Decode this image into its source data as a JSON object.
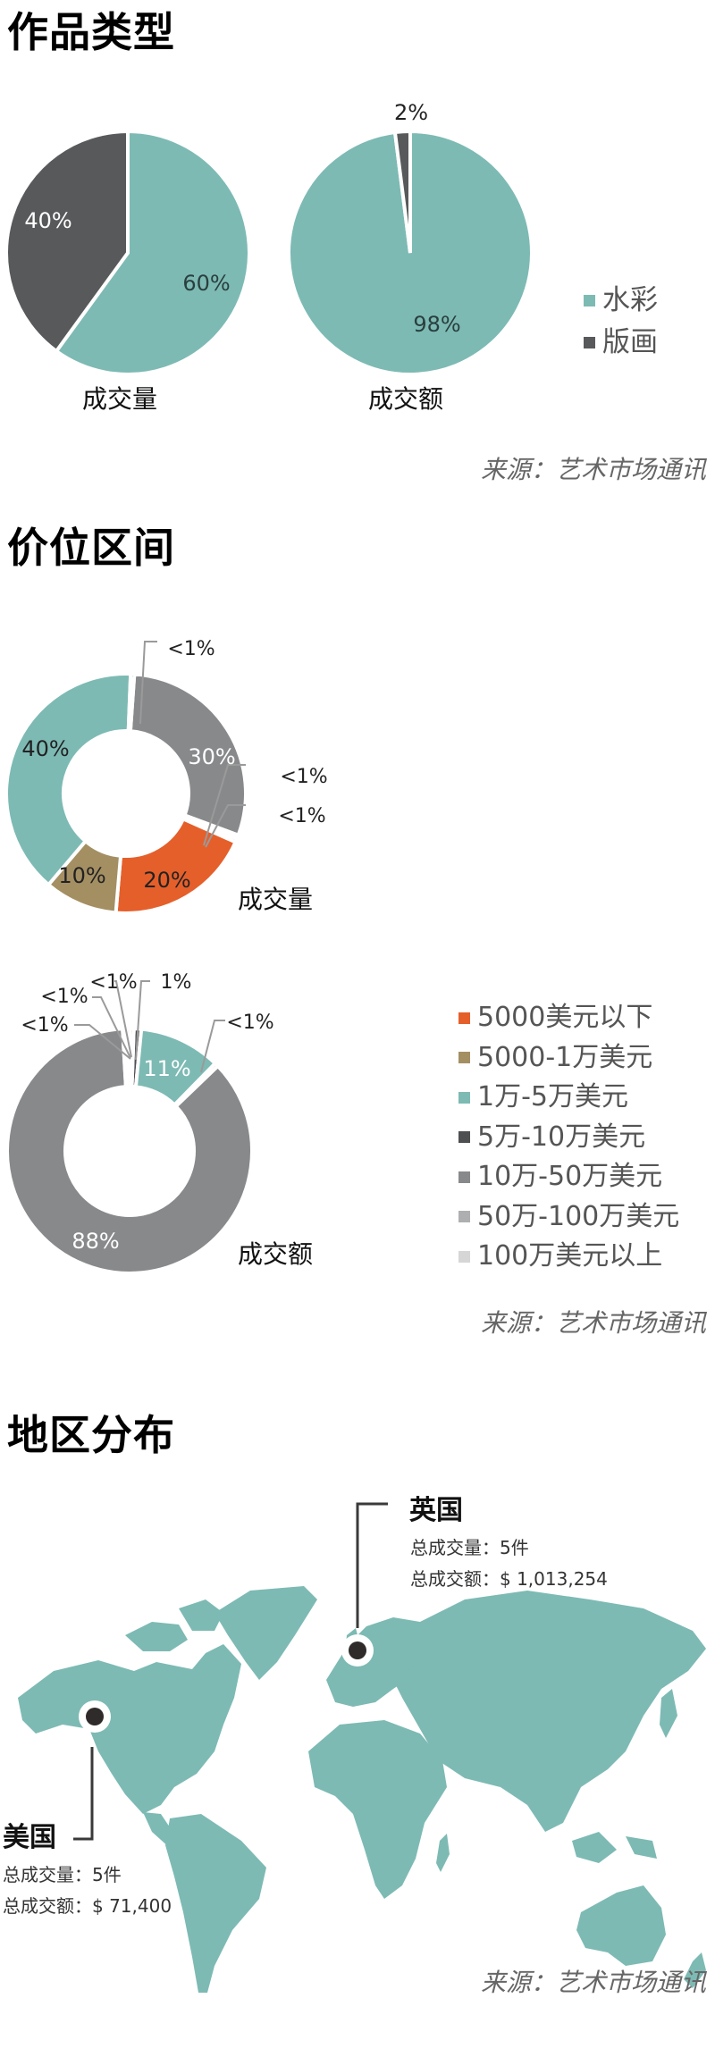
{
  "sections": {
    "type": {
      "heading": "作品类型",
      "pie_volume_label": "成交量",
      "pie_value_label": "成交额",
      "legend": [
        {
          "label": "水彩",
          "color": "#7dbab4"
        },
        {
          "label": "版画",
          "color": "#58595b"
        }
      ],
      "source": "来源：艺术市场通讯"
    },
    "price": {
      "heading": "价位区间",
      "donut_volume_label": "成交量",
      "donut_value_label": "成交额",
      "legend": [
        {
          "label": "5000美元以下",
          "color": "#e55f2b"
        },
        {
          "label": "5000-1万美元",
          "color": "#a48f63"
        },
        {
          "label": "1万-5万美元",
          "color": "#7dbab4"
        },
        {
          "label": "5万-10万美元",
          "color": "#4e4f51"
        },
        {
          "label": "10万-50万美元",
          "color": "#88898b"
        },
        {
          "label": "50万-100万美元",
          "color": "#aeafb1"
        },
        {
          "label": "100万美元以上",
          "color": "#d6d6d6"
        }
      ],
      "source": "来源：艺术市场通讯"
    },
    "region": {
      "heading": "地区分布",
      "uk": {
        "name": "英国",
        "volume_label": "总成交量：",
        "volume": "5件",
        "value_label": "总成交额：",
        "value": "$ 1,013,254"
      },
      "us": {
        "name": "美国",
        "volume_label": "总成交量：",
        "volume": "5件",
        "value_label": "总成交额：",
        "value": "$ 71,400"
      },
      "map_color": "#7dbab4",
      "source": "来源：艺术市场通讯"
    }
  },
  "labels": {
    "pie1_watercolor": "60%",
    "pie1_print": "40%",
    "pie2_watercolor": "98%",
    "pie2_print": "2%",
    "d1_teal": "40%",
    "d1_gray": "30%",
    "d1_orange": "20%",
    "d1_tan": "10%",
    "d1_lt1_top": "<1%",
    "d1_lt1_r1": "<1%",
    "d1_lt1_r2": "<1%",
    "d2_big": "88%",
    "d2_teal": "11%",
    "d2_lt1_a": "<1%",
    "d2_lt1_b": "<1%",
    "d2_lt1_c": "<1%",
    "d2_one": "1%",
    "d2_lt1_right": "<1%"
  },
  "chart_data": [
    {
      "type": "pie",
      "title": "作品类型 - 成交量",
      "categories": [
        "水彩",
        "版画"
      ],
      "values": [
        60,
        40
      ],
      "colors": [
        "#7dbab4",
        "#58595b"
      ],
      "legend_position": "right"
    },
    {
      "type": "pie",
      "title": "作品类型 - 成交额",
      "categories": [
        "水彩",
        "版画"
      ],
      "values": [
        98,
        2
      ],
      "colors": [
        "#7dbab4",
        "#58595b"
      ],
      "legend_position": "right"
    },
    {
      "type": "pie",
      "title": "价位区间 - 成交量",
      "donut": true,
      "categories": [
        "5000美元以下",
        "5000-1万美元",
        "1万-5万美元",
        "5万-10万美元",
        "10万-50万美元",
        "50万-100万美元",
        "100万美元以上"
      ],
      "values": [
        20,
        10,
        40,
        0.5,
        30,
        0.5,
        0.5
      ],
      "display_labels": [
        "20%",
        "10%",
        "40%",
        "<1%",
        "30%",
        "<1%",
        "<1%"
      ],
      "legend_position": "right"
    },
    {
      "type": "pie",
      "title": "价位区间 - 成交额",
      "donut": true,
      "categories": [
        "5000美元以下",
        "5000-1万美元",
        "1万-5万美元",
        "5万-10万美元",
        "10万-50万美元",
        "50万-100万美元",
        "100万美元以上"
      ],
      "values": [
        0.5,
        0.5,
        11,
        1,
        88,
        0.5,
        0.5
      ],
      "display_labels": [
        "<1%",
        "<1%",
        "11%",
        "1%",
        "88%",
        "<1%",
        "<1%"
      ],
      "legend_position": "right"
    }
  ]
}
